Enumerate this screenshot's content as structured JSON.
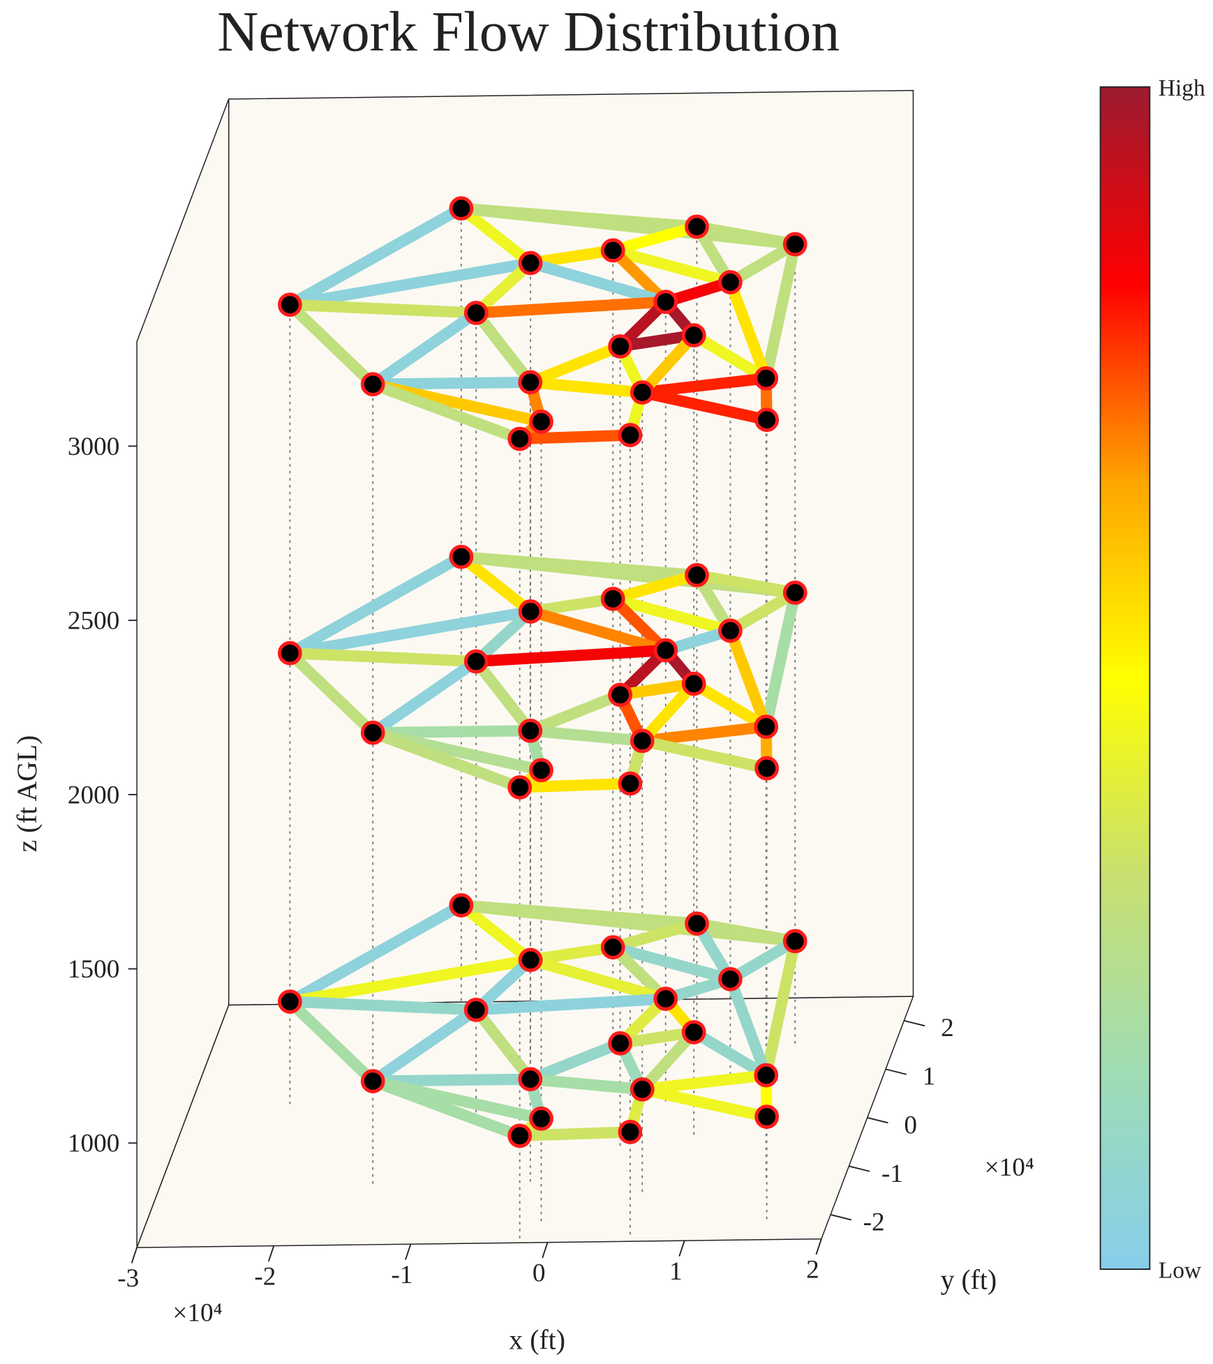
{
  "chart_data": {
    "type": "network3d",
    "title": "Network Flow Distribution",
    "xlabel": "x (ft)",
    "ylabel": "y (ft)",
    "zlabel": "z (ft AGL)",
    "x_multiplier": "×10⁴",
    "y_multiplier": "×10⁴",
    "xlim": [
      -30000,
      20000
    ],
    "ylim": [
      -25000,
      25000
    ],
    "zlim": [
      700,
      3300
    ],
    "xticks": [
      {
        "value": -30000,
        "label": "-3"
      },
      {
        "value": -20000,
        "label": "-2"
      },
      {
        "value": -10000,
        "label": "-1"
      },
      {
        "value": 0,
        "label": "0"
      },
      {
        "value": 10000,
        "label": "1"
      },
      {
        "value": 20000,
        "label": "2"
      }
    ],
    "yticks": [
      {
        "value": -20000,
        "label": "-2"
      },
      {
        "value": -10000,
        "label": "-1"
      },
      {
        "value": 0,
        "label": "0"
      },
      {
        "value": 10000,
        "label": "1"
      },
      {
        "value": 20000,
        "label": "2"
      }
    ],
    "zticks": [
      1000,
      1500,
      2000,
      2500,
      3000
    ],
    "nodes": [
      {
        "x": -22700,
        "y": 3900
      },
      {
        "x": -12800,
        "y": 23400
      },
      {
        "x": 5000,
        "y": 19000
      },
      {
        "x": 12700,
        "y": 15100
      },
      {
        "x": -500,
        "y": 14300
      },
      {
        "x": -6200,
        "y": 11900
      },
      {
        "x": 9000,
        "y": 7400
      },
      {
        "x": 4800,
        "y": 3500
      },
      {
        "x": -8800,
        "y": 1700
      },
      {
        "x": 7800,
        "y": -3500
      },
      {
        "x": 2700,
        "y": -5600
      },
      {
        "x": -14400,
        "y": -12800
      },
      {
        "x": -2900,
        "y": -12800
      },
      {
        "x": 14300,
        "y": -12600
      },
      {
        "x": 5600,
        "y": -15200
      },
      {
        "x": -1000,
        "y": -21000
      },
      {
        "x": 15500,
        "y": -21200
      },
      {
        "x": 5900,
        "y": -24000
      },
      {
        "x": -2100,
        "y": -24500
      }
    ],
    "edges": [
      [
        0,
        1
      ],
      [
        0,
        5
      ],
      [
        0,
        8
      ],
      [
        0,
        11
      ],
      [
        1,
        2
      ],
      [
        1,
        5
      ],
      [
        1,
        3
      ],
      [
        2,
        3
      ],
      [
        2,
        4
      ],
      [
        2,
        6
      ],
      [
        3,
        6
      ],
      [
        3,
        13
      ],
      [
        4,
        5
      ],
      [
        4,
        6
      ],
      [
        4,
        7
      ],
      [
        5,
        8
      ],
      [
        5,
        7
      ],
      [
        8,
        7
      ],
      [
        8,
        11
      ],
      [
        8,
        12
      ],
      [
        7,
        6
      ],
      [
        7,
        9
      ],
      [
        7,
        10
      ],
      [
        6,
        13
      ],
      [
        9,
        10
      ],
      [
        9,
        13
      ],
      [
        10,
        12
      ],
      [
        10,
        14
      ],
      [
        11,
        12
      ],
      [
        11,
        15
      ],
      [
        11,
        18
      ],
      [
        12,
        15
      ],
      [
        12,
        14
      ],
      [
        13,
        14
      ],
      [
        13,
        16
      ],
      [
        14,
        16
      ],
      [
        14,
        17
      ],
      [
        15,
        18
      ],
      [
        18,
        17
      ],
      [
        9,
        14
      ]
    ],
    "layers": [
      {
        "z": 1000,
        "flows": [
          0.05,
          0.45,
          0.1,
          0.2,
          0.3,
          0.45,
          0.3,
          0.3,
          0.35,
          0.1,
          0.1,
          0.35,
          0.4,
          0.1,
          0.3,
          0.05,
          0.42,
          0.05,
          0.05,
          0.3,
          0.1,
          0.55,
          0.4,
          0.1,
          0.35,
          0.1,
          0.1,
          0.15,
          0.1,
          0.2,
          0.2,
          0.15,
          0.2,
          0.45,
          0.5,
          0.45,
          0.4,
          0.4,
          0.35,
          0.3
        ]
      },
      {
        "z": 2000,
        "flows": [
          0.05,
          0.05,
          0.35,
          0.3,
          0.3,
          0.55,
          0.3,
          0.35,
          0.55,
          0.3,
          0.35,
          0.2,
          0.35,
          0.45,
          0.75,
          0.1,
          0.7,
          0.85,
          0.05,
          0.3,
          0.05,
          0.98,
          0.95,
          0.6,
          0.6,
          0.55,
          0.3,
          0.75,
          0.2,
          0.25,
          0.3,
          0.2,
          0.25,
          0.7,
          0.65,
          0.35,
          0.35,
          0.55,
          0.55,
          0.55
        ]
      },
      {
        "z": 3000,
        "flows": [
          0.05,
          0.05,
          0.35,
          0.3,
          0.3,
          0.45,
          0.3,
          0.3,
          0.5,
          0.3,
          0.3,
          0.3,
          0.55,
          0.45,
          0.68,
          0.42,
          0.05,
          0.72,
          0.05,
          0.3,
          0.85,
          0.98,
          0.95,
          0.55,
          0.98,
          0.45,
          0.55,
          0.45,
          0.05,
          0.6,
          0.3,
          0.7,
          0.55,
          0.8,
          0.72,
          0.8,
          0.45,
          0.7,
          0.75,
          0.6
        ]
      }
    ],
    "node_color": "#000000",
    "node_edge_color": "#ff1a1a",
    "colormap": [
      "#87ceeb",
      "#9fdcb4",
      "#c8e070",
      "#ffff00",
      "#ffa500",
      "#ff0000",
      "#9b1b30"
    ],
    "clim": [
      0,
      1
    ],
    "cticks": [
      {
        "value": 0,
        "label": "Low"
      },
      {
        "value": 1,
        "label": "High"
      }
    ],
    "drop_lines": true
  }
}
